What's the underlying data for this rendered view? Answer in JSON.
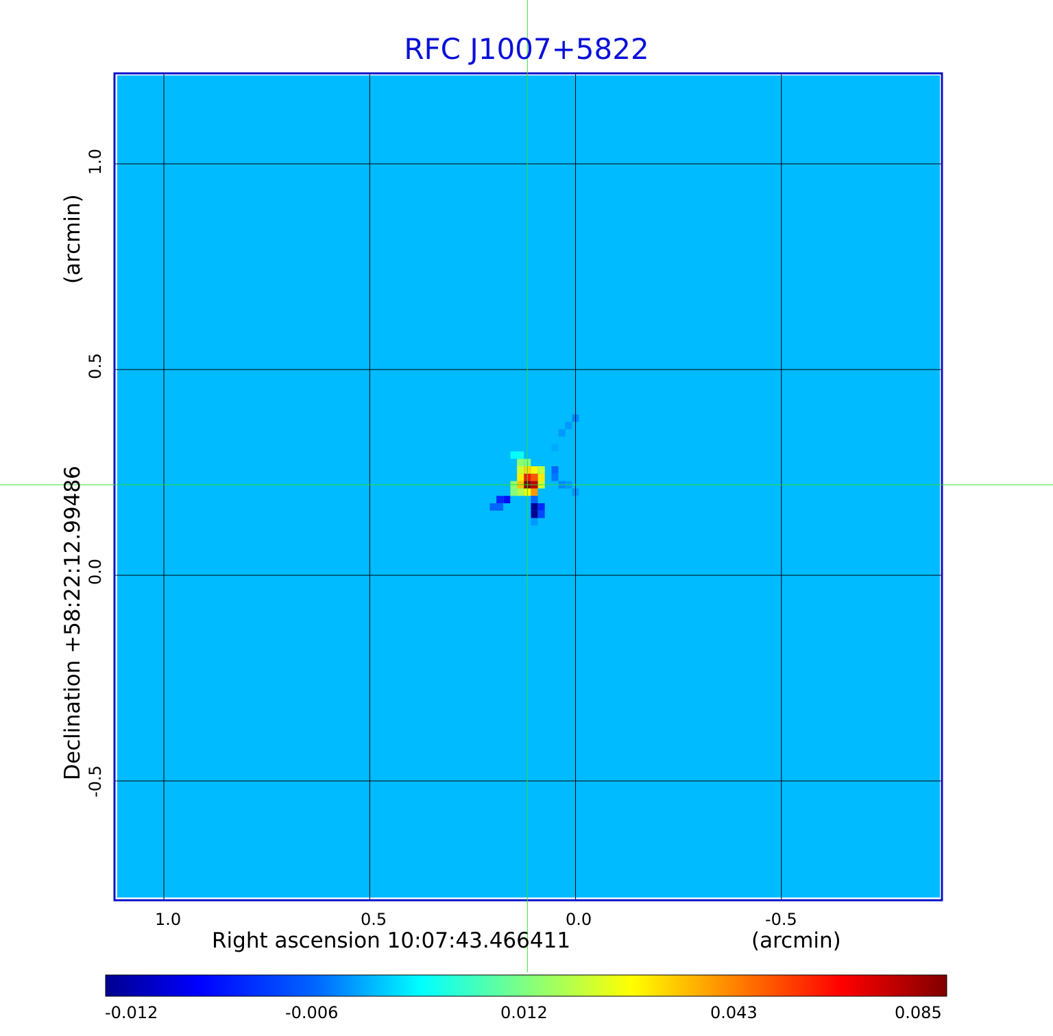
{
  "chart_data": {
    "type": "heatmap",
    "title": "RFC J1007+5822",
    "xlabel": "Right ascension  10:07:43.466411",
    "xunit": "(arcmin)",
    "ylabel": "Declination  +58:22:12.99486",
    "yunit": "(arcmin)",
    "xlim": [
      1.12,
      -0.89
    ],
    "ylim": [
      -0.79,
      1.22
    ],
    "xticks": [
      1.0,
      0.5,
      0.0,
      -0.5
    ],
    "xtick_labels": [
      "1.0",
      "0.5",
      "0.0",
      "-0.5"
    ],
    "yticks": [
      1.0,
      0.5,
      0.0,
      -0.5
    ],
    "ytick_labels": [
      "1.0",
      "0.5",
      "0.0",
      "-0.5"
    ],
    "grid": true,
    "crosshair": {
      "x": 0.117,
      "y": 0.22
    },
    "colormap": "jet",
    "colorbar": {
      "ticks": [
        -0.012,
        -0.006,
        0.012,
        0.043,
        0.085
      ],
      "tick_labels": [
        "-0.012",
        "-0.006",
        "0.012",
        "0.043",
        "0.085"
      ],
      "range": [
        -0.012,
        0.085
      ]
    },
    "background_value": -0.001,
    "source_pixels": [
      {
        "x": 0.117,
        "y": 0.22,
        "value": 0.085
      },
      {
        "x": 0.1,
        "y": 0.22,
        "value": 0.075
      },
      {
        "x": 0.117,
        "y": 0.238,
        "value": 0.06
      },
      {
        "x": 0.1,
        "y": 0.238,
        "value": 0.05
      },
      {
        "x": 0.134,
        "y": 0.22,
        "value": 0.035
      },
      {
        "x": 0.134,
        "y": 0.238,
        "value": 0.03
      },
      {
        "x": 0.117,
        "y": 0.256,
        "value": 0.032
      },
      {
        "x": 0.1,
        "y": 0.256,
        "value": 0.028
      },
      {
        "x": 0.083,
        "y": 0.238,
        "value": 0.03
      },
      {
        "x": 0.083,
        "y": 0.256,
        "value": 0.02
      },
      {
        "x": 0.134,
        "y": 0.256,
        "value": 0.022
      },
      {
        "x": 0.1,
        "y": 0.202,
        "value": 0.04
      },
      {
        "x": 0.117,
        "y": 0.202,
        "value": 0.028
      },
      {
        "x": 0.083,
        "y": 0.22,
        "value": 0.022
      },
      {
        "x": 0.134,
        "y": 0.202,
        "value": 0.018
      },
      {
        "x": 0.134,
        "y": 0.274,
        "value": 0.014
      },
      {
        "x": 0.117,
        "y": 0.274,
        "value": 0.012
      },
      {
        "x": 0.15,
        "y": 0.22,
        "value": 0.014
      },
      {
        "x": 0.15,
        "y": 0.202,
        "value": 0.013
      },
      {
        "x": 0.1,
        "y": 0.166,
        "value": -0.012
      },
      {
        "x": 0.1,
        "y": 0.148,
        "value": -0.012
      },
      {
        "x": 0.083,
        "y": 0.166,
        "value": -0.008
      },
      {
        "x": 0.083,
        "y": 0.148,
        "value": -0.007
      },
      {
        "x": 0.1,
        "y": 0.184,
        "value": -0.006
      },
      {
        "x": 0.167,
        "y": 0.184,
        "value": -0.009
      },
      {
        "x": 0.184,
        "y": 0.184,
        "value": -0.008
      },
      {
        "x": 0.2,
        "y": 0.166,
        "value": -0.006
      },
      {
        "x": 0.184,
        "y": 0.166,
        "value": -0.006
      },
      {
        "x": 0.05,
        "y": 0.256,
        "value": -0.006
      },
      {
        "x": 0.05,
        "y": 0.238,
        "value": -0.005
      },
      {
        "x": 0.033,
        "y": 0.22,
        "value": -0.004
      },
      {
        "x": 0.017,
        "y": 0.22,
        "value": -0.003
      },
      {
        "x": 0.0,
        "y": 0.202,
        "value": -0.003
      },
      {
        "x": 0.0,
        "y": 0.382,
        "value": -0.004
      },
      {
        "x": 0.017,
        "y": 0.364,
        "value": -0.003
      },
      {
        "x": 0.033,
        "y": 0.346,
        "value": -0.003
      },
      {
        "x": 0.05,
        "y": 0.31,
        "value": -0.002
      },
      {
        "x": 0.1,
        "y": 0.13,
        "value": -0.003
      },
      {
        "x": 0.15,
        "y": 0.292,
        "value": 0.003
      },
      {
        "x": 0.134,
        "y": 0.292,
        "value": 0.004
      }
    ]
  }
}
